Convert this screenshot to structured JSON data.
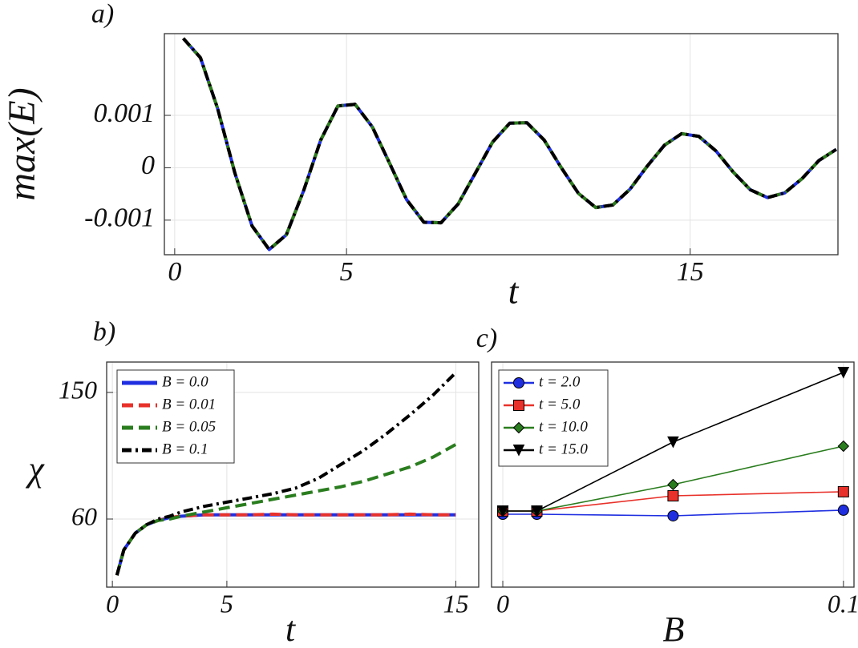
{
  "chart_data": [
    {
      "type": "line",
      "title": "a)",
      "xlabel": "t",
      "ylabel": "max(E)",
      "x": [
        0.25,
        0.75,
        1.25,
        1.75,
        2.25,
        2.75,
        3.25,
        3.75,
        4.25,
        4.75,
        5.25,
        5.75,
        6.25,
        6.75,
        7.25,
        7.75,
        8.25,
        8.75,
        9.25,
        9.75,
        10.25,
        10.75,
        11.25,
        11.75,
        12.25,
        12.75,
        13.25,
        13.75,
        14.25,
        14.75,
        15.25,
        15.75,
        16.25,
        16.75,
        17.25,
        17.75,
        18.25,
        18.75,
        19.25
      ],
      "series": [
        {
          "color": "#1f2fe0",
          "dash": "solid",
          "values": [
            0.00247,
            0.0021,
            0.00113,
            -0.0001,
            -0.00111,
            -0.00156,
            -0.00128,
            -0.00044,
            0.00053,
            0.00118,
            0.00121,
            0.00078,
            9e-05,
            -0.00061,
            -0.00104,
            -0.00105,
            -0.00069,
            -0.0001,
            0.00049,
            0.00085,
            0.00086,
            0.00053,
            0,
            -0.00049,
            -0.00076,
            -0.00071,
            -0.00041,
            3e-05,
            0.00043,
            0.00065,
            0.0006,
            0.00032,
            -8e-05,
            -0.00042,
            -0.00057,
            -0.00048,
            -0.00021,
            0.00014,
            0.00035
          ]
        },
        {
          "color": "#e8312a",
          "dash": "dashed",
          "values": [
            0.00247,
            0.0021,
            0.00113,
            -0.0001,
            -0.00111,
            -0.00156,
            -0.00128,
            -0.00044,
            0.00053,
            0.00118,
            0.00121,
            0.00078,
            9e-05,
            -0.00061,
            -0.00104,
            -0.00105,
            -0.00069,
            -0.0001,
            0.00049,
            0.00085,
            0.00086,
            0.00053,
            0,
            -0.00049,
            -0.00076,
            -0.00071,
            -0.00041,
            3e-05,
            0.00043,
            0.00065,
            0.0006,
            0.00032,
            -8e-05,
            -0.00042,
            -0.00057,
            -0.00048,
            -0.00021,
            0.00014,
            0.00035
          ]
        },
        {
          "color": "#2a7d1e",
          "dash": "dashed",
          "values": [
            0.00247,
            0.0021,
            0.00113,
            -0.0001,
            -0.00111,
            -0.00156,
            -0.00128,
            -0.00044,
            0.00053,
            0.00118,
            0.00121,
            0.00078,
            9e-05,
            -0.00061,
            -0.00104,
            -0.00105,
            -0.00069,
            -0.0001,
            0.00049,
            0.00085,
            0.00086,
            0.00053,
            0,
            -0.00049,
            -0.00076,
            -0.00071,
            -0.00041,
            3e-05,
            0.00043,
            0.00065,
            0.0006,
            0.00032,
            -8e-05,
            -0.00042,
            -0.00057,
            -0.00048,
            -0.00021,
            0.00014,
            0.00035
          ]
        },
        {
          "color": "#000000",
          "dash": "dashdot",
          "values": [
            0.00247,
            0.0021,
            0.00113,
            -0.0001,
            -0.00111,
            -0.00156,
            -0.00128,
            -0.00044,
            0.00053,
            0.00118,
            0.00121,
            0.00078,
            9e-05,
            -0.00061,
            -0.00104,
            -0.00105,
            -0.00069,
            -0.0001,
            0.00049,
            0.00085,
            0.00086,
            0.00053,
            0,
            -0.00049,
            -0.00076,
            -0.00071,
            -0.00041,
            3e-05,
            0.00043,
            0.00065,
            0.0006,
            0.00032,
            -8e-05,
            -0.00042,
            -0.00057,
            -0.00048,
            -0.00021,
            0.00014,
            0.00035
          ]
        }
      ],
      "xlim": [
        -0.3,
        19.3
      ],
      "ylim": [
        -0.00166,
        0.00256
      ],
      "xticks": [
        0,
        5,
        15
      ],
      "yticks": [
        -0.001,
        0,
        0.001
      ],
      "grid": true
    },
    {
      "type": "line",
      "title": "b)",
      "xlabel": "t",
      "ylabel": "χ",
      "x": [
        0.2,
        0.5,
        1,
        1.5,
        2,
        2.5,
        3,
        4,
        5,
        6,
        7,
        8,
        9,
        10,
        11,
        12,
        13,
        14,
        15
      ],
      "series": [
        {
          "name": "B = 0.0",
          "color": "#1f2fe0",
          "dash": "solid",
          "values": [
            20,
            38,
            50,
            56,
            59,
            61,
            62,
            63,
            63,
            63,
            63,
            63,
            63,
            63,
            63,
            63,
            63,
            63,
            63
          ]
        },
        {
          "name": "B = 0.01",
          "color": "#e8312a",
          "dash": "dashed",
          "values": [
            20,
            38,
            50,
            56,
            59,
            61,
            62,
            63,
            63,
            63,
            63.5,
            63,
            63,
            63,
            63,
            63,
            63.5,
            63,
            63
          ]
        },
        {
          "name": "B = 0.05",
          "color": "#2a7d1e",
          "dash": "dashed",
          "values": [
            20,
            38,
            50,
            56,
            59,
            60,
            62,
            65,
            68,
            71,
            74,
            77,
            80,
            83,
            87,
            92,
            97,
            104,
            113
          ]
        },
        {
          "name": "B = 0.1",
          "color": "#000000",
          "dash": "dashdot",
          "values": [
            20,
            38,
            50,
            56,
            60,
            62,
            65,
            69,
            72,
            75,
            78,
            82,
            89,
            99,
            109,
            121,
            134,
            148,
            164
          ]
        }
      ],
      "xlim": [
        -0.25,
        16
      ],
      "ylim": [
        11.6,
        171.6
      ],
      "xticks": [
        0,
        5,
        15
      ],
      "yticks": [
        60,
        150
      ],
      "grid": true,
      "legend": "upper left"
    },
    {
      "type": "line",
      "title": "c)",
      "xlabel": "B",
      "x": [
        0,
        0.01,
        0.05,
        0.1
      ],
      "series": [
        {
          "name": "t = 2.0",
          "color": "#1f2fe0",
          "marker": "circle",
          "values": [
            63.4,
            63.4,
            62.3,
            66.3
          ]
        },
        {
          "name": "t = 5.0",
          "color": "#e8312a",
          "marker": "square",
          "values": [
            65.7,
            65.7,
            76.5,
            79.4
          ]
        },
        {
          "name": "t = 10.0",
          "color": "#2a7d1e",
          "marker": "diamond",
          "values": [
            65.7,
            65.7,
            84.5,
            111.8
          ]
        },
        {
          "name": "t = 15.0",
          "color": "#000000",
          "marker": "triangle-down",
          "values": [
            65.7,
            65.7,
            114.7,
            164.2
          ]
        }
      ],
      "xlim": [
        -0.0033,
        0.1031
      ],
      "ylim": [
        11.6,
        171.6
      ],
      "xticks": [
        0,
        0.1
      ],
      "grid": true,
      "legend": "upper left"
    }
  ]
}
